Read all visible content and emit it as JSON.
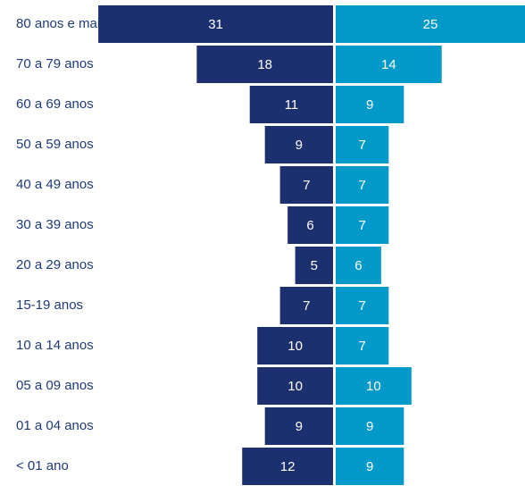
{
  "chart_data": {
    "type": "bar",
    "categories": [
      "80 anos e mais",
      "70 a 79 anos",
      "60 a 69 anos",
      "50 a 59 anos",
      "40 a 49 anos",
      "30 a 39 anos",
      "20 a 29 anos",
      "15-19 anos",
      "10 a 14 anos",
      "05 a 09 anos",
      "01 a 04 anos",
      "< 01 ano"
    ],
    "series": [
      {
        "color": "#1c2f6e",
        "values": [
          31,
          18,
          11,
          9,
          7,
          6,
          5,
          7,
          10,
          10,
          9,
          12
        ]
      },
      {
        "color": "#0399c9",
        "values": [
          25,
          14,
          9,
          7,
          7,
          7,
          6,
          7,
          7,
          10,
          9,
          9
        ]
      }
    ]
  }
}
